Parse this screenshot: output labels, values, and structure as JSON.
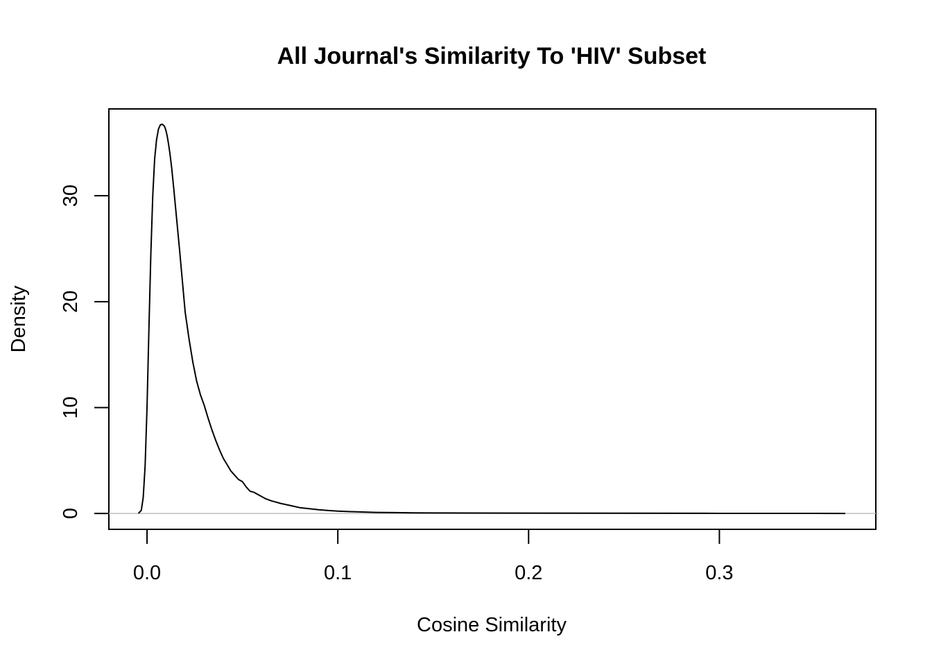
{
  "chart_data": {
    "type": "line",
    "title": "All Journal's Similarity To 'HIV' Subset",
    "xlabel": "Cosine Similarity",
    "ylabel": "Density",
    "xlim": [
      -0.02,
      0.382
    ],
    "ylim": [
      -1.5,
      38.2
    ],
    "xticks": [
      0.0,
      0.1,
      0.2,
      0.3
    ],
    "xtick_labels": [
      "0.0",
      "0.1",
      "0.2",
      "0.3"
    ],
    "yticks": [
      0,
      10,
      20,
      30
    ],
    "ytick_labels": [
      "0",
      "10",
      "20",
      "30"
    ],
    "baseline": 0,
    "baseline_color": "#bebebe",
    "line_color": "#000000",
    "series": [
      {
        "name": "density",
        "x": [
          -0.0045,
          -0.003,
          -0.002,
          -0.001,
          0.0,
          0.001,
          0.002,
          0.003,
          0.004,
          0.005,
          0.006,
          0.007,
          0.008,
          0.009,
          0.0095,
          0.01,
          0.0105,
          0.011,
          0.012,
          0.013,
          0.014,
          0.015,
          0.016,
          0.017,
          0.018,
          0.019,
          0.02,
          0.022,
          0.024,
          0.026,
          0.028,
          0.03,
          0.032,
          0.034,
          0.036,
          0.038,
          0.04,
          0.042,
          0.044,
          0.046,
          0.048,
          0.05,
          0.052,
          0.054,
          0.056,
          0.058,
          0.06,
          0.062,
          0.065,
          0.068,
          0.07,
          0.075,
          0.08,
          0.085,
          0.09,
          0.095,
          0.1,
          0.11,
          0.12,
          0.13,
          0.14,
          0.15,
          0.17,
          0.2,
          0.25,
          0.3,
          0.35,
          0.366
        ],
        "y": [
          0.0,
          0.3,
          1.5,
          4.5,
          10.0,
          17.5,
          24.5,
          30.0,
          33.5,
          35.3,
          36.3,
          36.7,
          36.75,
          36.6,
          36.4,
          36.1,
          35.7,
          35.2,
          34.0,
          32.5,
          30.7,
          28.8,
          26.9,
          25.0,
          23.0,
          21.0,
          19.0,
          16.5,
          14.3,
          12.5,
          11.2,
          10.2,
          9.0,
          7.9,
          6.9,
          6.0,
          5.2,
          4.6,
          4.0,
          3.6,
          3.2,
          3.0,
          2.5,
          2.1,
          2.0,
          1.8,
          1.6,
          1.4,
          1.2,
          1.05,
          0.95,
          0.75,
          0.55,
          0.45,
          0.35,
          0.28,
          0.22,
          0.15,
          0.1,
          0.08,
          0.06,
          0.05,
          0.04,
          0.03,
          0.02,
          0.01,
          0.005,
          0.0
        ]
      }
    ]
  }
}
